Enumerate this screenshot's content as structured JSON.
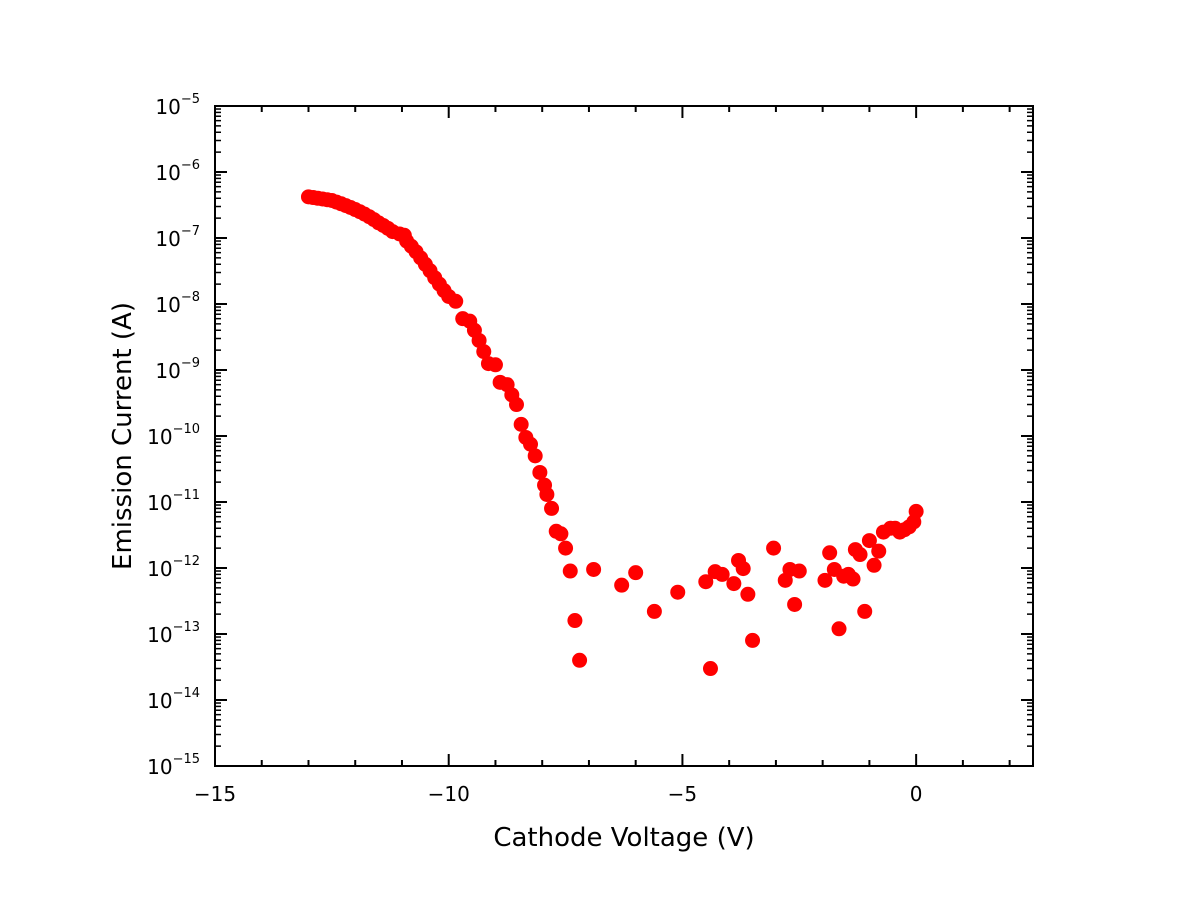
{
  "chart_data": {
    "type": "scatter",
    "xlabel": "Cathode Voltage (V)",
    "ylabel": "Emission Current (A)",
    "xlim": [
      -15,
      2.5
    ],
    "ylim_exponents": [
      -15,
      -5
    ],
    "y_scale": "log",
    "x_ticks": [
      {
        "value": -15,
        "label": "−15"
      },
      {
        "value": -10,
        "label": "−10"
      },
      {
        "value": -5,
        "label": "−5"
      },
      {
        "value": 0,
        "label": "0"
      }
    ],
    "y_ticks": [
      {
        "exp": -15,
        "base": "10",
        "sup": "−15"
      },
      {
        "exp": -14,
        "base": "10",
        "sup": "−14"
      },
      {
        "exp": -13,
        "base": "10",
        "sup": "−13"
      },
      {
        "exp": -12,
        "base": "10",
        "sup": "−12"
      },
      {
        "exp": -11,
        "base": "10",
        "sup": "−11"
      },
      {
        "exp": -10,
        "base": "10",
        "sup": "−10"
      },
      {
        "exp": -9,
        "base": "10",
        "sup": "−9"
      },
      {
        "exp": -8,
        "base": "10",
        "sup": "−8"
      },
      {
        "exp": -7,
        "base": "10",
        "sup": "−7"
      },
      {
        "exp": -6,
        "base": "10",
        "sup": "−6"
      },
      {
        "exp": -5,
        "base": "10",
        "sup": "−5"
      }
    ],
    "marker_color": "#ff0000",
    "grid": false,
    "points": [
      {
        "x": -13.0,
        "y": 4.2e-07
      },
      {
        "x": -12.9,
        "y": 4.1e-07
      },
      {
        "x": -12.8,
        "y": 4e-07
      },
      {
        "x": -12.7,
        "y": 3.9e-07
      },
      {
        "x": -12.6,
        "y": 3.8e-07
      },
      {
        "x": -12.5,
        "y": 3.7e-07
      },
      {
        "x": -12.4,
        "y": 3.5e-07
      },
      {
        "x": -12.3,
        "y": 3.3e-07
      },
      {
        "x": -12.2,
        "y": 3.1e-07
      },
      {
        "x": -12.1,
        "y": 2.9e-07
      },
      {
        "x": -12.0,
        "y": 2.7e-07
      },
      {
        "x": -11.9,
        "y": 2.5e-07
      },
      {
        "x": -11.8,
        "y": 2.3e-07
      },
      {
        "x": -11.7,
        "y": 2.1e-07
      },
      {
        "x": -11.6,
        "y": 1.9e-07
      },
      {
        "x": -11.5,
        "y": 1.7e-07
      },
      {
        "x": -11.4,
        "y": 1.55e-07
      },
      {
        "x": -11.3,
        "y": 1.4e-07
      },
      {
        "x": -11.2,
        "y": 1.25e-07
      },
      {
        "x": -11.05,
        "y": 1.15e-07
      },
      {
        "x": -10.95,
        "y": 1.1e-07
      },
      {
        "x": -10.9,
        "y": 9e-08
      },
      {
        "x": -10.8,
        "y": 7.5e-08
      },
      {
        "x": -10.7,
        "y": 6.2e-08
      },
      {
        "x": -10.6,
        "y": 5e-08
      },
      {
        "x": -10.5,
        "y": 4e-08
      },
      {
        "x": -10.4,
        "y": 3.2e-08
      },
      {
        "x": -10.3,
        "y": 2.5e-08
      },
      {
        "x": -10.2,
        "y": 2e-08
      },
      {
        "x": -10.1,
        "y": 1.6e-08
      },
      {
        "x": -10.0,
        "y": 1.3e-08
      },
      {
        "x": -9.85,
        "y": 1.1e-08
      },
      {
        "x": -9.7,
        "y": 6e-09
      },
      {
        "x": -9.55,
        "y": 5.5e-09
      },
      {
        "x": -9.45,
        "y": 4e-09
      },
      {
        "x": -9.35,
        "y": 2.8e-09
      },
      {
        "x": -9.25,
        "y": 1.9e-09
      },
      {
        "x": -9.15,
        "y": 1.25e-09
      },
      {
        "x": -9.0,
        "y": 1.2e-09
      },
      {
        "x": -8.9,
        "y": 6.5e-10
      },
      {
        "x": -8.75,
        "y": 6e-10
      },
      {
        "x": -8.65,
        "y": 4.2e-10
      },
      {
        "x": -8.55,
        "y": 3e-10
      },
      {
        "x": -8.45,
        "y": 1.5e-10
      },
      {
        "x": -8.35,
        "y": 9.5e-11
      },
      {
        "x": -8.25,
        "y": 7.5e-11
      },
      {
        "x": -8.15,
        "y": 5e-11
      },
      {
        "x": -8.05,
        "y": 2.8e-11
      },
      {
        "x": -7.95,
        "y": 1.8e-11
      },
      {
        "x": -7.9,
        "y": 1.3e-11
      },
      {
        "x": -7.8,
        "y": 8e-12
      },
      {
        "x": -7.7,
        "y": 3.6e-12
      },
      {
        "x": -7.6,
        "y": 3.3e-12
      },
      {
        "x": -7.5,
        "y": 2e-12
      },
      {
        "x": -7.4,
        "y": 9e-13
      },
      {
        "x": -7.3,
        "y": 1.6e-13
      },
      {
        "x": -7.2,
        "y": 4e-14
      },
      {
        "x": -6.9,
        "y": 9.5e-13
      },
      {
        "x": -6.3,
        "y": 5.5e-13
      },
      {
        "x": -6.0,
        "y": 8.5e-13
      },
      {
        "x": -5.6,
        "y": 2.2e-13
      },
      {
        "x": -5.1,
        "y": 4.3e-13
      },
      {
        "x": -4.5,
        "y": 6.2e-13
      },
      {
        "x": -4.4,
        "y": 3e-14
      },
      {
        "x": -4.3,
        "y": 8.8e-13
      },
      {
        "x": -4.15,
        "y": 8e-13
      },
      {
        "x": -3.9,
        "y": 5.8e-13
      },
      {
        "x": -3.8,
        "y": 1.3e-12
      },
      {
        "x": -3.7,
        "y": 9.8e-13
      },
      {
        "x": -3.6,
        "y": 4e-13
      },
      {
        "x": -3.5,
        "y": 8e-14
      },
      {
        "x": -3.05,
        "y": 2e-12
      },
      {
        "x": -2.8,
        "y": 6.5e-13
      },
      {
        "x": -2.7,
        "y": 9.5e-13
      },
      {
        "x": -2.6,
        "y": 2.8e-13
      },
      {
        "x": -2.5,
        "y": 9e-13
      },
      {
        "x": -1.95,
        "y": 6.5e-13
      },
      {
        "x": -1.85,
        "y": 1.7e-12
      },
      {
        "x": -1.75,
        "y": 9.5e-13
      },
      {
        "x": -1.65,
        "y": 1.2e-13
      },
      {
        "x": -1.55,
        "y": 7.5e-13
      },
      {
        "x": -1.45,
        "y": 8e-13
      },
      {
        "x": -1.35,
        "y": 6.8e-13
      },
      {
        "x": -1.3,
        "y": 1.9e-12
      },
      {
        "x": -1.2,
        "y": 1.6e-12
      },
      {
        "x": -1.1,
        "y": 2.2e-13
      },
      {
        "x": -1.0,
        "y": 2.6e-12
      },
      {
        "x": -0.9,
        "y": 1.1e-12
      },
      {
        "x": -0.8,
        "y": 1.8e-12
      },
      {
        "x": -0.7,
        "y": 3.5e-12
      },
      {
        "x": -0.55,
        "y": 4e-12
      },
      {
        "x": -0.45,
        "y": 4e-12
      },
      {
        "x": -0.35,
        "y": 3.5e-12
      },
      {
        "x": -0.25,
        "y": 3.8e-12
      },
      {
        "x": -0.15,
        "y": 4.2e-12
      },
      {
        "x": -0.05,
        "y": 5e-12
      },
      {
        "x": 0.0,
        "y": 7.2e-12
      }
    ]
  }
}
